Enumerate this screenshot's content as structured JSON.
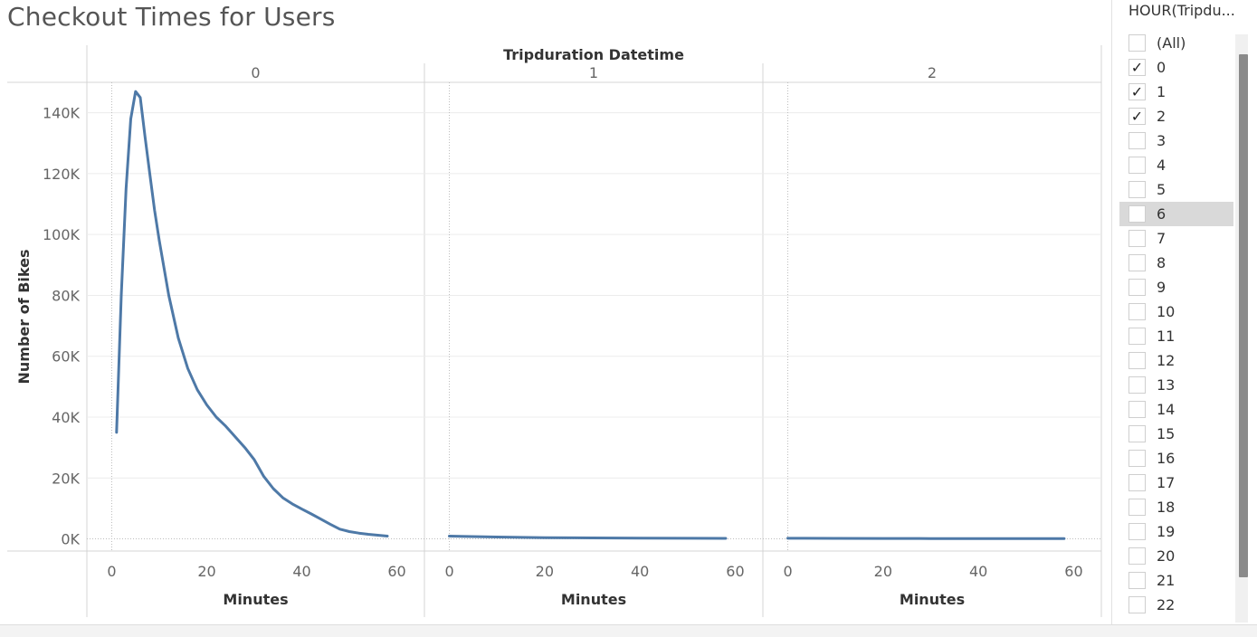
{
  "title": "Checkout Times for Users",
  "colors": {
    "line": "#4e79a7",
    "grid": "#ececec",
    "divider": "#d4d4d4"
  },
  "filter": {
    "title": "HOUR(Tripdu...",
    "items": [
      {
        "label": "(All)",
        "checked": false
      },
      {
        "label": "0",
        "checked": true
      },
      {
        "label": "1",
        "checked": true
      },
      {
        "label": "2",
        "checked": true
      },
      {
        "label": "3",
        "checked": false
      },
      {
        "label": "4",
        "checked": false
      },
      {
        "label": "5",
        "checked": false
      },
      {
        "label": "6",
        "checked": false,
        "highlighted": true
      },
      {
        "label": "7",
        "checked": false
      },
      {
        "label": "8",
        "checked": false
      },
      {
        "label": "9",
        "checked": false
      },
      {
        "label": "10",
        "checked": false
      },
      {
        "label": "11",
        "checked": false
      },
      {
        "label": "12",
        "checked": false
      },
      {
        "label": "13",
        "checked": false
      },
      {
        "label": "14",
        "checked": false
      },
      {
        "label": "15",
        "checked": false
      },
      {
        "label": "16",
        "checked": false
      },
      {
        "label": "17",
        "checked": false
      },
      {
        "label": "18",
        "checked": false
      },
      {
        "label": "19",
        "checked": false
      },
      {
        "label": "20",
        "checked": false
      },
      {
        "label": "21",
        "checked": false
      },
      {
        "label": "22",
        "checked": false
      }
    ]
  },
  "chart_data": {
    "type": "line",
    "title": "Checkout Times for Users",
    "column_header": "Tripduration Datetime",
    "ylabel": "Number of Bikes",
    "xlabel": "Minutes",
    "ylim": [
      -4000,
      150000
    ],
    "xlim": [
      -2,
      62
    ],
    "yticks": [
      0,
      20000,
      40000,
      60000,
      80000,
      100000,
      120000,
      140000
    ],
    "ytick_labels": [
      "0K",
      "20K",
      "40K",
      "60K",
      "80K",
      "100K",
      "120K",
      "140K"
    ],
    "xticks": [
      0,
      20,
      40,
      60
    ],
    "xtick_labels": [
      "0",
      "20",
      "40",
      "60"
    ],
    "panels": [
      {
        "label": "0",
        "x": [
          1,
          2,
          3,
          4,
          5,
          6,
          7,
          8,
          9,
          10,
          12,
          14,
          16,
          18,
          20,
          22,
          24,
          26,
          28,
          30,
          32,
          34,
          36,
          38,
          40,
          42,
          44,
          46,
          48,
          50,
          52,
          54,
          56,
          58
        ],
        "y": [
          35000,
          80000,
          115000,
          138000,
          147000,
          145000,
          132000,
          120000,
          108000,
          98000,
          80000,
          66000,
          56000,
          49000,
          44000,
          40000,
          37000,
          33500,
          30000,
          26000,
          20500,
          16500,
          13500,
          11500,
          9800,
          8200,
          6500,
          4800,
          3200,
          2400,
          1900,
          1500,
          1200,
          900
        ]
      },
      {
        "label": "1",
        "x": [
          0,
          10,
          20,
          30,
          40,
          50,
          58
        ],
        "y": [
          900,
          600,
          400,
          300,
          250,
          200,
          150
        ]
      },
      {
        "label": "2",
        "x": [
          0,
          10,
          20,
          30,
          40,
          50,
          58
        ],
        "y": [
          200,
          150,
          120,
          100,
          80,
          70,
          60
        ]
      }
    ]
  }
}
